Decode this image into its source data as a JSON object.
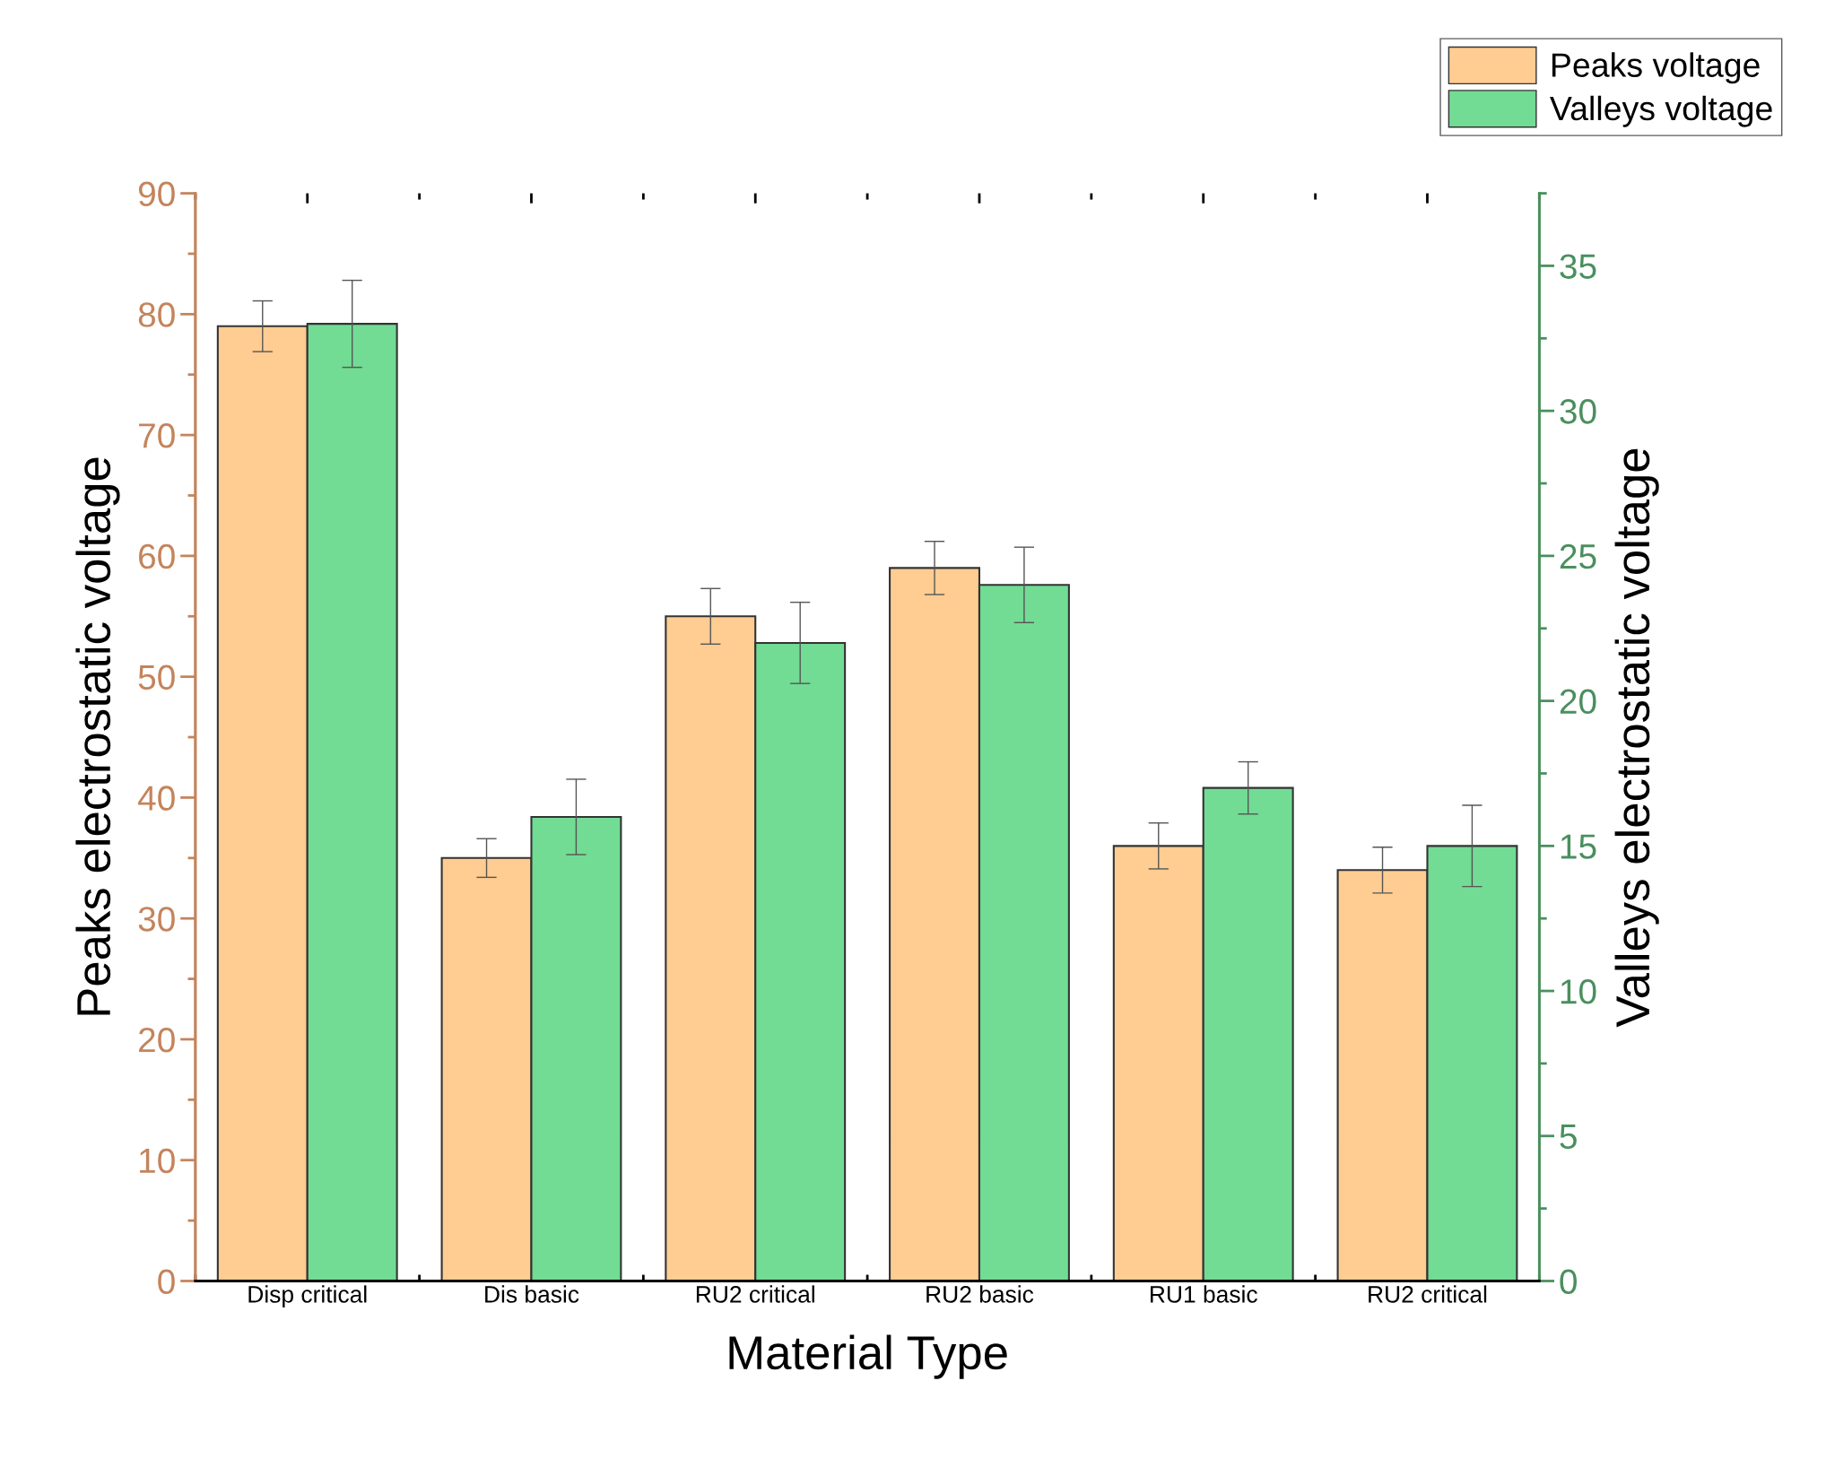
{
  "chart_data": {
    "type": "bar",
    "xlabel": "Material Type",
    "ylabel": "Peaks electrostatic voltage",
    "y2label": "Valleys electrostatic voltage",
    "categories": [
      "Disp critical",
      "Dis basic",
      "RU2 critical",
      "RU2 basic",
      "RU1 basic",
      "RU2 critical"
    ],
    "series": [
      {
        "name": "Peaks voltage",
        "color": "#ffcc91",
        "values": [
          79,
          35,
          55,
          59,
          36,
          34
        ],
        "errors": [
          2.1,
          1.6,
          2.3,
          2.2,
          1.9,
          1.9
        ]
      },
      {
        "name": "Valleys voltage",
        "color": "#72db94",
        "axis": "y2",
        "values": [
          33,
          16,
          22,
          24,
          17,
          15
        ],
        "errors": [
          1.5,
          1.3,
          1.4,
          1.3,
          0.9,
          1.4
        ]
      }
    ],
    "ylim": [
      0,
      90
    ],
    "yticks": [
      0,
      10,
      20,
      30,
      40,
      50,
      60,
      70,
      80,
      90
    ],
    "y2lim": [
      0,
      37.5
    ],
    "y2ticks": [
      0,
      5,
      10,
      15,
      20,
      25,
      30,
      35
    ],
    "grid": false,
    "legend": "top right"
  }
}
